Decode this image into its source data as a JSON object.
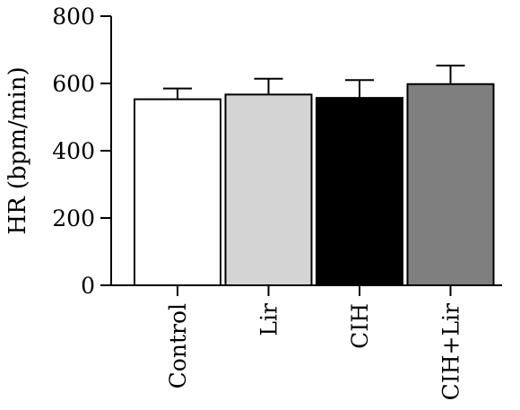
{
  "chart_data": {
    "type": "bar",
    "title": "",
    "xlabel": "",
    "ylabel": "HR (bpm/min)",
    "ylim": [
      0,
      800
    ],
    "yticks": [
      0,
      200,
      400,
      600,
      800
    ],
    "categories": [
      "Control",
      "Lir",
      "CIH",
      "CIH+Lir"
    ],
    "values": [
      553,
      567,
      557,
      598
    ],
    "errors": [
      32,
      47,
      53,
      55
    ],
    "bar_colors": [
      "#ffffff",
      "#d4d4d4",
      "#000000",
      "#7f7f7f"
    ],
    "grid": false,
    "legend": "none"
  }
}
